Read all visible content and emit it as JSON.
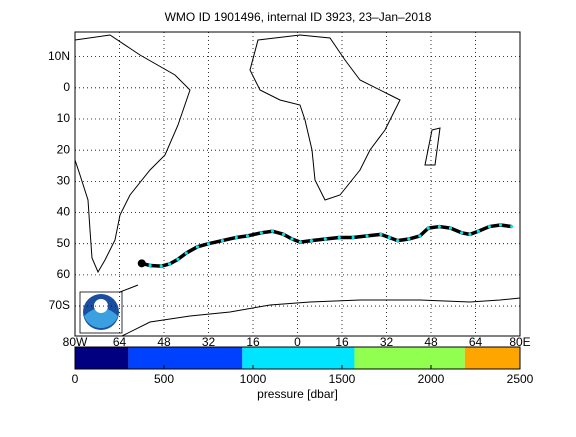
{
  "title": "WMO ID 1901496, internal ID 3923, 23–Jan–2018",
  "map": {
    "lonlim": [
      -80,
      80
    ],
    "latlim": [
      -79.6,
      17.9
    ],
    "lonticks": [
      {
        "value": -80,
        "label": "80W"
      },
      {
        "value": -64,
        "label": "64"
      },
      {
        "value": -48,
        "label": "48"
      },
      {
        "value": -32,
        "label": "32"
      },
      {
        "value": -16,
        "label": "16"
      },
      0,
      16,
      32,
      48,
      64,
      {
        "value": 80,
        "label": "80E"
      }
    ],
    "latticks": [
      {
        "value": 10,
        "label": "10N"
      },
      0,
      {
        "value": -10,
        "label": "10"
      },
      {
        "value": -20,
        "label": "20"
      },
      {
        "value": -30,
        "label": "30"
      },
      {
        "value": -40,
        "label": "40"
      },
      {
        "value": -50,
        "label": "50"
      },
      {
        "value": -60,
        "label": "60"
      },
      {
        "value": -70,
        "label": "70S"
      }
    ],
    "grid": true
  },
  "trajectory": {
    "color": "#000000",
    "marker_color": "#00e5ee",
    "lon": [
      -56,
      -53,
      -49,
      -46,
      -43,
      -40,
      -36,
      -32,
      -27,
      -22,
      -18,
      -13,
      -9,
      -5,
      -2,
      1,
      5,
      10,
      15,
      20,
      25,
      30,
      33,
      36,
      40,
      44,
      47,
      51,
      55,
      59,
      62,
      65,
      69,
      73,
      77
    ],
    "lat": [
      -56.3,
      -57,
      -57.2,
      -56.5,
      -55,
      -53,
      -51,
      -50,
      -49,
      -48,
      -47.5,
      -46.5,
      -46,
      -47,
      -48.5,
      -49.5,
      -49,
      -48.5,
      -48,
      -48,
      -47.5,
      -47,
      -48,
      -49,
      -48.5,
      -47.5,
      -45,
      -44.5,
      -45,
      -46.5,
      -47,
      -46,
      -44.5,
      -44,
      -44.5
    ]
  },
  "colorbar": {
    "label": "pressure [dbar]",
    "lim": [
      0,
      2500
    ],
    "ticks": [
      0,
      500,
      1000,
      1500,
      2000,
      2500
    ],
    "bounds": [
      0,
      300,
      940,
      1570,
      2190,
      2500
    ],
    "colors": [
      "#000080",
      "#0040ff",
      "#00e5ff",
      "#90ff50",
      "#ffa500"
    ]
  }
}
